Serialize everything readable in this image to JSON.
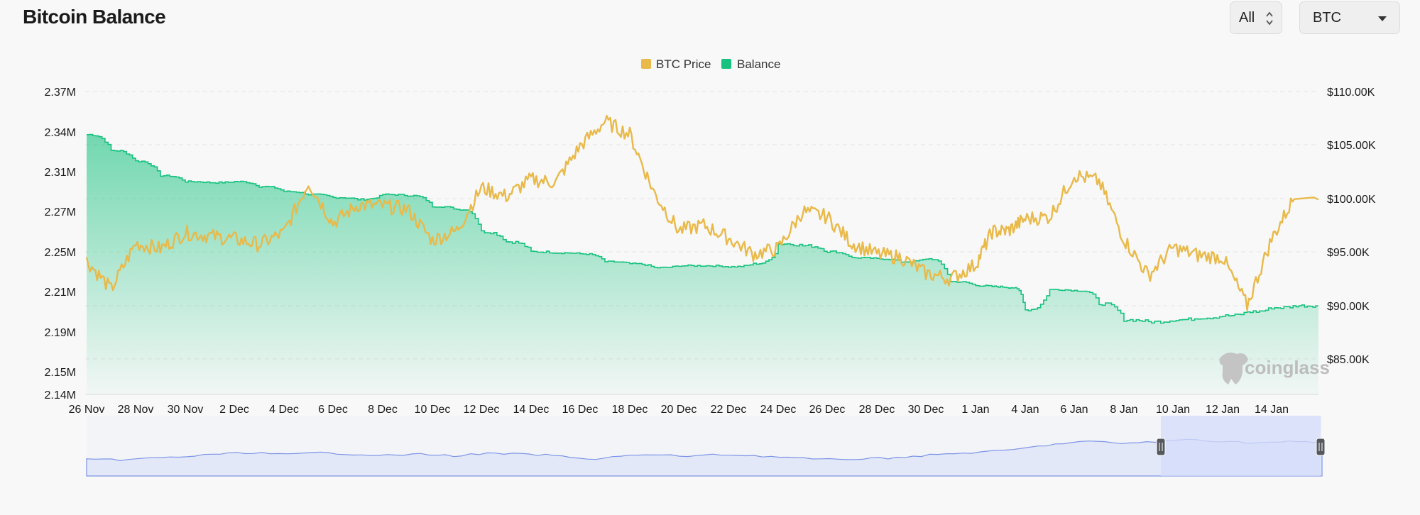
{
  "header": {
    "title": "Bitcoin Balance",
    "range_select": {
      "value": "All"
    },
    "asset_select": {
      "value": "BTC"
    }
  },
  "watermark": {
    "text": "coinglass"
  },
  "colors": {
    "price": "#e9b949",
    "balance": "#17c27f",
    "navigator_fill": "#e3e8f8",
    "navigator_line": "#7d94e6",
    "navigator_window": "#d4dcfb",
    "handle": "#55595f"
  },
  "chart_data": {
    "type": "line",
    "legend_position": "top-center",
    "grid": true,
    "x_axis": {
      "ticks": [
        "26 Nov",
        "28 Nov",
        "30 Nov",
        "2 Dec",
        "4 Dec",
        "6 Dec",
        "8 Dec",
        "10 Dec",
        "12 Dec",
        "14 Dec",
        "16 Dec",
        "18 Dec",
        "20 Dec",
        "22 Dec",
        "24 Dec",
        "26 Dec",
        "28 Dec",
        "30 Dec",
        "1 Jan",
        "4 Jan",
        "6 Jan",
        "8 Jan",
        "10 Jan",
        "12 Jan",
        "14 Jan"
      ]
    },
    "y_left": {
      "ticks": [
        "2.37M",
        "2.34M",
        "2.31M",
        "2.27M",
        "2.25M",
        "2.21M",
        "2.19M",
        "2.15M",
        "2.14M"
      ],
      "range": [
        2140000,
        2370000
      ]
    },
    "y_right": {
      "ticks": [
        "$110.00K",
        "$105.00K",
        "$100.00K",
        "$95.00K",
        "$90.00K",
        "$85.00K"
      ],
      "range": [
        81500,
        110000
      ]
    },
    "series": [
      {
        "name": "BTC Price",
        "axis": "right",
        "points": [
          [
            "26 Nov",
            94200
          ],
          [
            "27 Nov",
            91500
          ],
          [
            "28 Nov",
            95800
          ],
          [
            "29 Nov",
            95300
          ],
          [
            "30 Nov",
            96800
          ],
          [
            "1 Dec",
            96500
          ],
          [
            "2 Dec",
            96200
          ],
          [
            "3 Dec",
            95700
          ],
          [
            "4 Dec",
            96800
          ],
          [
            "5 Dec",
            101500
          ],
          [
            "6 Dec",
            97700
          ],
          [
            "7 Dec",
            99400
          ],
          [
            "8 Dec",
            99300
          ],
          [
            "9 Dec",
            99000
          ],
          [
            "10 Dec",
            96100
          ],
          [
            "11 Dec",
            97000
          ],
          [
            "12 Dec",
            101000
          ],
          [
            "13 Dec",
            100200
          ],
          [
            "14 Dec",
            101800
          ],
          [
            "15 Dec",
            101500
          ],
          [
            "16 Dec",
            104900
          ],
          [
            "17 Dec",
            107200
          ],
          [
            "18 Dec",
            106000
          ],
          [
            "19 Dec",
            100500
          ],
          [
            "20 Dec",
            97000
          ],
          [
            "21 Dec",
            97500
          ],
          [
            "22 Dec",
            96300
          ],
          [
            "23 Dec",
            94800
          ],
          [
            "24 Dec",
            95300
          ],
          [
            "25 Dec",
            98800
          ],
          [
            "26 Dec",
            98300
          ],
          [
            "27 Dec",
            95800
          ],
          [
            "28 Dec",
            94800
          ],
          [
            "29 Dec",
            94500
          ],
          [
            "30 Dec",
            93000
          ],
          [
            "31 Dec",
            92500
          ],
          [
            "1 Jan",
            93800
          ],
          [
            "2 Jan",
            96900
          ],
          [
            "3 Jan",
            97000
          ],
          [
            "4 Jan",
            98100
          ],
          [
            "5 Jan",
            98300
          ],
          [
            "6 Jan",
            102200
          ],
          [
            "7 Jan",
            101600
          ],
          [
            "8 Jan",
            96200
          ],
          [
            "9 Jan",
            92800
          ],
          [
            "10 Jan",
            95400
          ],
          [
            "11 Jan",
            94700
          ],
          [
            "12 Jan",
            94500
          ],
          [
            "13 Jan",
            90000
          ],
          [
            "14 Jan",
            96200
          ],
          [
            "15 Jan",
            100400
          ]
        ]
      },
      {
        "name": "Balance",
        "axis": "left",
        "points": [
          [
            "26 Nov",
            2338000
          ],
          [
            "27 Nov",
            2326000
          ],
          [
            "28 Nov",
            2318000
          ],
          [
            "29 Nov",
            2306000
          ],
          [
            "30 Nov",
            2300000
          ],
          [
            "1 Dec",
            2299000
          ],
          [
            "2 Dec",
            2300000
          ],
          [
            "3 Dec",
            2295000
          ],
          [
            "4 Dec",
            2290000
          ],
          [
            "5 Dec",
            2287000
          ],
          [
            "6 Dec",
            2284000
          ],
          [
            "7 Dec",
            2282000
          ],
          [
            "8 Dec",
            2287000
          ],
          [
            "9 Dec",
            2286000
          ],
          [
            "10 Dec",
            2275000
          ],
          [
            "11 Dec",
            2272000
          ],
          [
            "12 Dec",
            2260000
          ],
          [
            "13 Dec",
            2255000
          ],
          [
            "14 Dec",
            2250000
          ],
          [
            "15 Dec",
            2249000
          ],
          [
            "16 Dec",
            2248000
          ],
          [
            "17 Dec",
            2240000
          ],
          [
            "18 Dec",
            2238000
          ],
          [
            "19 Dec",
            2234000
          ],
          [
            "20 Dec",
            2236000
          ],
          [
            "21 Dec",
            2236000
          ],
          [
            "22 Dec",
            2235000
          ],
          [
            "23 Dec",
            2238000
          ],
          [
            "24 Dec",
            2254000
          ],
          [
            "25 Dec",
            2253000
          ],
          [
            "26 Dec",
            2250000
          ],
          [
            "27 Dec",
            2244000
          ],
          [
            "28 Dec",
            2243000
          ],
          [
            "29 Dec",
            2240000
          ],
          [
            "30 Dec",
            2243000
          ],
          [
            "31 Dec",
            2220000
          ],
          [
            "1 Jan",
            2216000
          ],
          [
            "2 Jan",
            2215000
          ],
          [
            "3 Jan",
            2214000
          ],
          [
            "4 Jan",
            2201000
          ],
          [
            "5 Jan",
            2212000
          ],
          [
            "6 Jan",
            2211000
          ],
          [
            "7 Jan",
            2204000
          ],
          [
            "8 Jan",
            2196000
          ],
          [
            "9 Jan",
            2195000
          ],
          [
            "10 Jan",
            2196000
          ],
          [
            "11 Jan",
            2197000
          ],
          [
            "12 Jan",
            2198000
          ],
          [
            "13 Jan",
            2200000
          ],
          [
            "14 Jan",
            2202000
          ],
          [
            "15 Jan",
            2203000
          ]
        ]
      }
    ],
    "navigator": {
      "selected_range": [
        "8 Jan",
        "15 Jan"
      ],
      "values": [
        1.0,
        0.98,
        1.2,
        1.4,
        1.75,
        1.9,
        1.65,
        1.9,
        1.7,
        1.55,
        1.7,
        1.5,
        1.8,
        1.7,
        1.55,
        1.0,
        1.5,
        1.6,
        1.45,
        1.65,
        1.5,
        1.3,
        1.0,
        1.1,
        1.2,
        1.5,
        1.8,
        2.0,
        2.4,
        3.0,
        3.35,
        3.1,
        3.3,
        3.6,
        3.35,
        3.15,
        3.3,
        3.2
      ]
    }
  }
}
